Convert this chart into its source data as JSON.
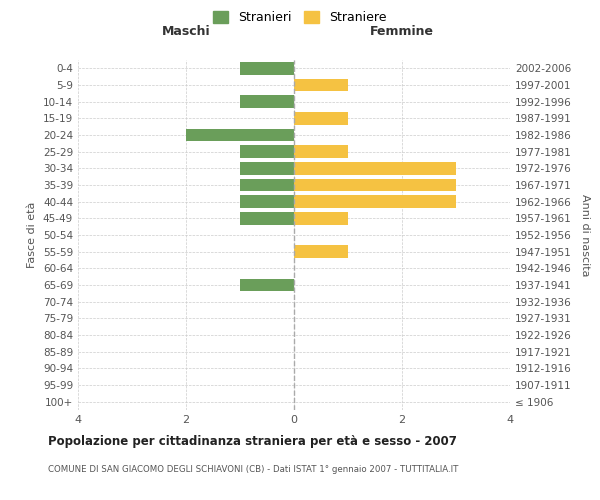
{
  "age_groups": [
    "100+",
    "95-99",
    "90-94",
    "85-89",
    "80-84",
    "75-79",
    "70-74",
    "65-69",
    "60-64",
    "55-59",
    "50-54",
    "45-49",
    "40-44",
    "35-39",
    "30-34",
    "25-29",
    "20-24",
    "15-19",
    "10-14",
    "5-9",
    "0-4"
  ],
  "birth_years": [
    "≤ 1906",
    "1907-1911",
    "1912-1916",
    "1917-1921",
    "1922-1926",
    "1927-1931",
    "1932-1936",
    "1937-1941",
    "1942-1946",
    "1947-1951",
    "1952-1956",
    "1957-1961",
    "1962-1966",
    "1967-1971",
    "1972-1976",
    "1977-1981",
    "1982-1986",
    "1987-1991",
    "1992-1996",
    "1997-2001",
    "2002-2006"
  ],
  "maschi": [
    0,
    0,
    0,
    0,
    0,
    0,
    0,
    1,
    0,
    0,
    0,
    1,
    1,
    1,
    1,
    1,
    2,
    0,
    1,
    0,
    1
  ],
  "femmine": [
    0,
    0,
    0,
    0,
    0,
    0,
    0,
    0,
    0,
    1,
    0,
    1,
    3,
    3,
    3,
    1,
    0,
    1,
    0,
    1,
    0
  ],
  "color_maschi": "#6a9e5a",
  "color_femmine": "#f5c242",
  "background_color": "#ffffff",
  "grid_color": "#cccccc",
  "title": "Popolazione per cittadinanza straniera per età e sesso - 2007",
  "subtitle": "COMUNE DI SAN GIACOMO DEGLI SCHIAVONI (CB) - Dati ISTAT 1° gennaio 2007 - TUTTITALIA.IT",
  "xlabel_left": "Maschi",
  "xlabel_right": "Femmine",
  "ylabel_left": "Fasce di età",
  "ylabel_right": "Anni di nascita",
  "legend_stranieri": "Stranieri",
  "legend_straniere": "Straniere",
  "xlim": 4,
  "bar_height": 0.75
}
